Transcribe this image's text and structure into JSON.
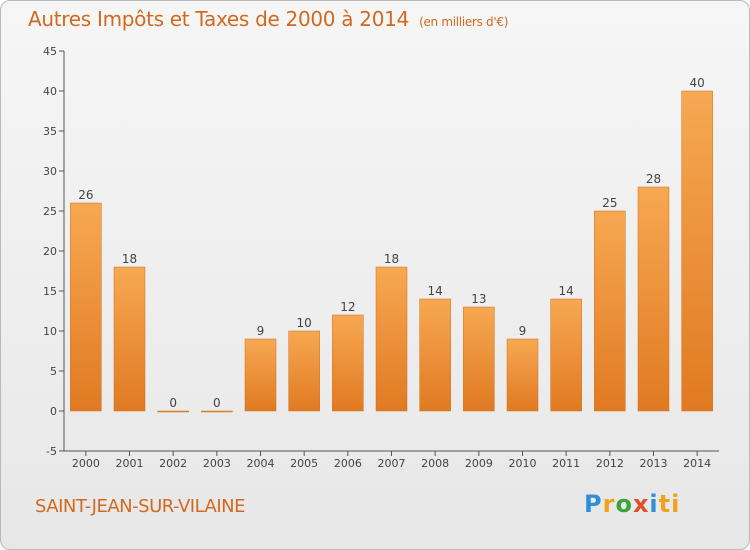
{
  "header": {
    "title": "Autres Impôts et Taxes de 2000 à 2014",
    "subtitle": "(en milliers d'€)"
  },
  "footer": {
    "city": "SAINT-JEAN-SUR-VILAINE",
    "logo_text": "Proxiti",
    "logo_letters": [
      "P",
      "r",
      "o",
      "x",
      "i",
      "ti"
    ]
  },
  "colors": {
    "title": "#d2691e",
    "bar_light": "#f7a852",
    "bar_dark": "#e07a22",
    "axis": "#444444"
  },
  "chart_data": {
    "type": "bar",
    "categories": [
      "2000",
      "2001",
      "2002",
      "2003",
      "2004",
      "2005",
      "2006",
      "2007",
      "2008",
      "2009",
      "2010",
      "2011",
      "2012",
      "2013",
      "2014"
    ],
    "values": [
      26,
      18,
      0,
      0,
      9,
      10,
      12,
      18,
      14,
      13,
      9,
      14,
      25,
      28,
      40
    ],
    "ylim": [
      -5,
      45
    ],
    "yticks": [
      -5,
      0,
      5,
      10,
      15,
      20,
      25,
      30,
      35,
      40,
      45
    ],
    "grid": false,
    "legend": "none"
  }
}
